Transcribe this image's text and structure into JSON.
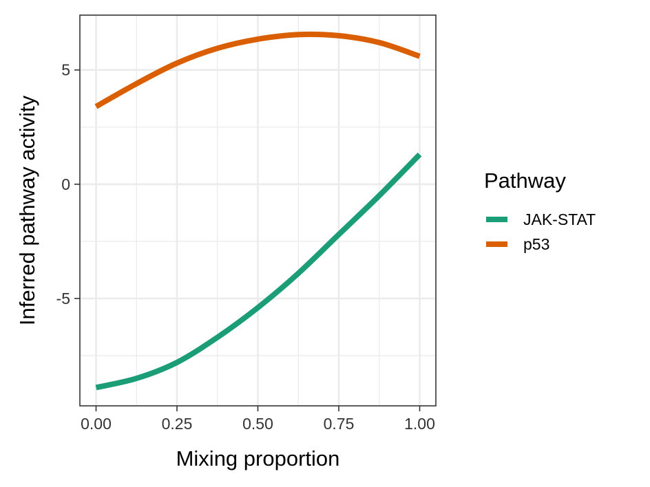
{
  "chart_data": {
    "type": "line",
    "xlabel": "Mixing proportion",
    "ylabel": "Inferred pathway activity",
    "xlim": [
      -0.05,
      1.05
    ],
    "ylim": [
      -9.7,
      7.4
    ],
    "x_ticks": [
      0,
      0.25,
      0.5,
      0.75,
      1
    ],
    "x_tick_labels": [
      "0.00",
      "0.25",
      "0.50",
      "0.75",
      "1.00"
    ],
    "y_ticks": [
      -5,
      0,
      5
    ],
    "y_tick_labels": [
      "-5",
      "0",
      "5"
    ],
    "grid": true,
    "legend": {
      "title": "Pathway",
      "position": "right"
    },
    "series": [
      {
        "name": "JAK-STAT",
        "color": "#1b9e77",
        "x": [
          0,
          0.125,
          0.25,
          0.375,
          0.5,
          0.625,
          0.75,
          0.875,
          1.0
        ],
        "y": [
          -8.9,
          -8.5,
          -7.8,
          -6.7,
          -5.4,
          -3.9,
          -2.2,
          -0.5,
          1.3
        ]
      },
      {
        "name": "p53",
        "color": "#d95f02",
        "x": [
          0,
          0.125,
          0.25,
          0.375,
          0.5,
          0.625,
          0.75,
          0.875,
          1.0
        ],
        "y": [
          3.4,
          4.4,
          5.3,
          5.95,
          6.35,
          6.55,
          6.5,
          6.2,
          5.6
        ]
      }
    ]
  }
}
